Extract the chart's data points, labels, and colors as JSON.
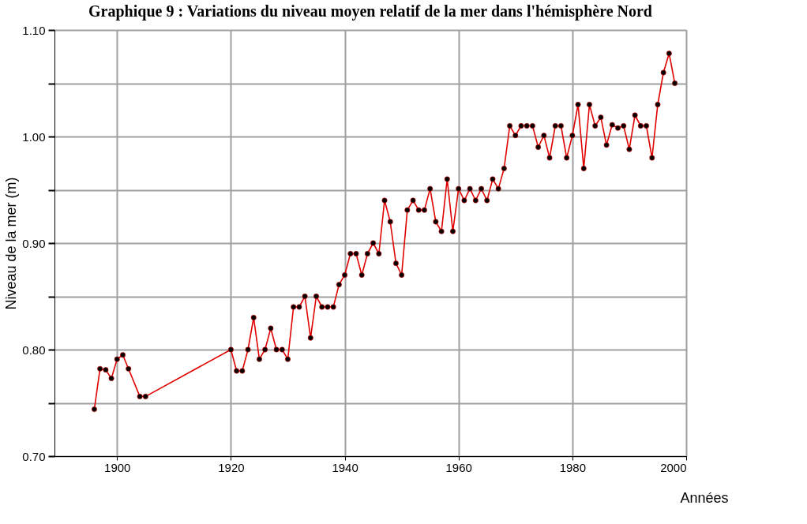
{
  "chart_data": {
    "type": "line",
    "title": "Graphique 9 : Variations du niveau moyen relatif de la mer dans l'hémisphère Nord",
    "xlabel": "Années",
    "ylabel": "Niveau de la mer (m)",
    "x": [
      1896,
      1897,
      1898,
      1899,
      1900,
      1901,
      1902,
      1904,
      1905,
      1920,
      1921,
      1922,
      1923,
      1924,
      1925,
      1926,
      1927,
      1928,
      1929,
      1930,
      1931,
      1932,
      1933,
      1934,
      1935,
      1936,
      1937,
      1938,
      1939,
      1940,
      1941,
      1942,
      1943,
      1944,
      1945,
      1946,
      1947,
      1948,
      1949,
      1950,
      1951,
      1952,
      1953,
      1954,
      1955,
      1956,
      1957,
      1958,
      1959,
      1960,
      1961,
      1962,
      1963,
      1964,
      1965,
      1966,
      1967,
      1968,
      1969,
      1970,
      1971,
      1972,
      1973,
      1974,
      1975,
      1976,
      1977,
      1978,
      1979,
      1980,
      1981,
      1982,
      1983,
      1984,
      1985,
      1986,
      1987,
      1988,
      1989,
      1990,
      1991,
      1992,
      1993,
      1994,
      1995,
      1996,
      1997,
      1998
    ],
    "series": [
      {
        "color": "#e00000",
        "values": [
          0.744,
          0.782,
          0.781,
          0.773,
          0.791,
          0.795,
          0.782,
          0.756,
          0.756,
          0.8,
          0.78,
          0.78,
          0.8,
          0.83,
          0.791,
          0.8,
          0.82,
          0.8,
          0.8,
          0.791,
          0.84,
          0.84,
          0.85,
          0.811,
          0.85,
          0.84,
          0.84,
          0.84,
          0.861,
          0.87,
          0.89,
          0.89,
          0.87,
          0.89,
          0.9,
          0.89,
          0.94,
          0.92,
          0.881,
          0.87,
          0.931,
          0.94,
          0.931,
          0.931,
          0.951,
          0.92,
          0.911,
          0.96,
          0.911,
          0.951,
          0.94,
          0.951,
          0.94,
          0.951,
          0.94,
          0.96,
          0.951,
          0.97,
          1.01,
          1.001,
          1.01,
          1.01,
          1.01,
          0.99,
          1.001,
          0.98,
          1.01,
          1.01,
          0.98,
          1.001,
          1.03,
          0.97,
          1.03,
          1.01,
          1.018,
          0.992,
          1.011,
          1.008,
          1.01,
          0.988,
          1.02,
          1.01,
          1.01,
          0.98,
          1.03,
          1.06,
          1.078,
          1.05
        ]
      }
    ],
    "xlim": [
      1889,
      2000
    ],
    "xticks": [
      1900,
      1920,
      1940,
      1960,
      1980,
      2000
    ],
    "ylim": [
      0.7,
      1.1
    ],
    "yticks": [
      {
        "value": 0.7,
        "label": "0.70"
      },
      {
        "value": 0.75,
        "label": null
      },
      {
        "value": 0.8,
        "label": "0.80"
      },
      {
        "value": 0.85,
        "label": null
      },
      {
        "value": 0.9,
        "label": "0.90"
      },
      {
        "value": 0.95,
        "label": null
      },
      {
        "value": 1.0,
        "label": "1.00"
      },
      {
        "value": 1.05,
        "label": null
      },
      {
        "value": 1.1,
        "label": "1.10"
      }
    ],
    "grid": true,
    "marker": "circle",
    "line_style": "solid"
  }
}
